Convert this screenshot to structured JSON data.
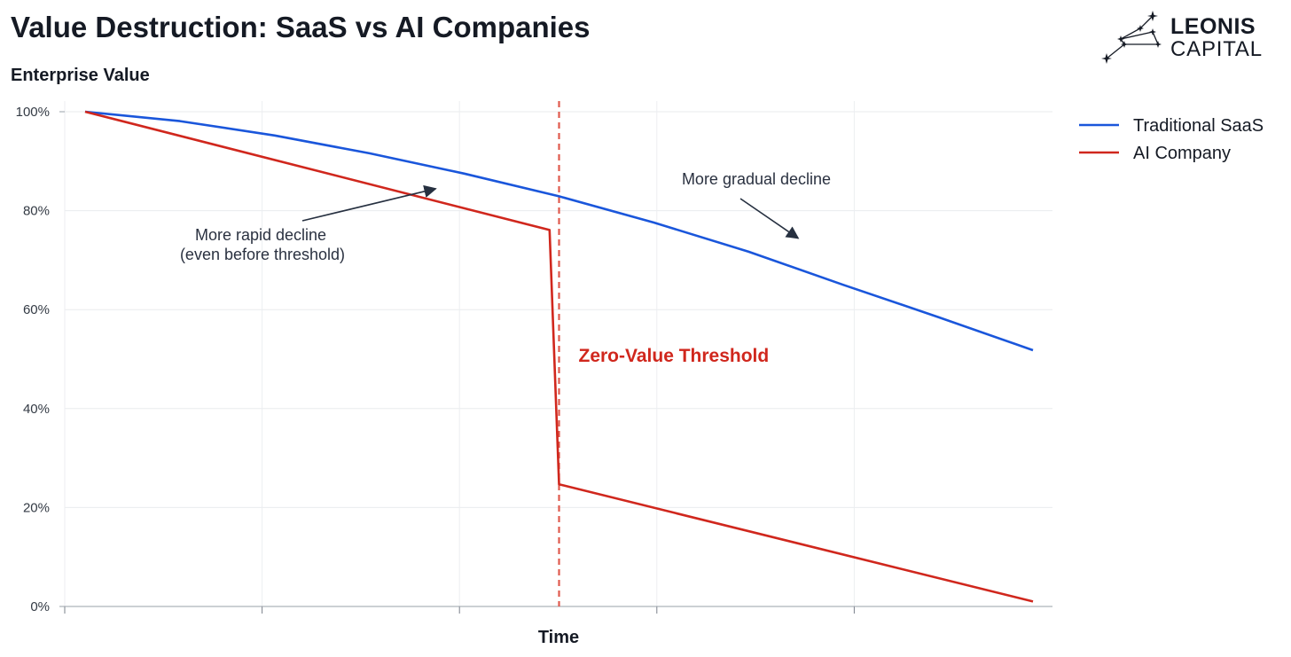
{
  "title": "Value Destruction: SaaS vs AI Companies",
  "logo": {
    "line1": "LEONIS",
    "line2": "CAPITAL"
  },
  "chart_data": {
    "type": "line",
    "ylabel": "Enterprise Value",
    "xlabel": "Time",
    "ylim": [
      0,
      100
    ],
    "xlim": [
      0,
      1
    ],
    "yticks": [
      "0%",
      "20%",
      "40%",
      "60%",
      "80%",
      "100%"
    ],
    "ytick_values": [
      0,
      20,
      40,
      60,
      80,
      100
    ],
    "xtick_values": [
      0,
      0.2,
      0.4,
      0.6,
      0.8
    ],
    "grid": true,
    "legend": "top-right",
    "series": [
      {
        "name": "Traditional SaaS",
        "color": "#1a56db",
        "x": [
          0,
          0.1,
          0.2,
          0.3,
          0.4,
          0.5,
          0.6,
          0.7,
          0.8,
          0.9,
          1.0
        ],
        "y": [
          100,
          98.1,
          95.2,
          91.6,
          87.5,
          82.9,
          77.6,
          71.7,
          65,
          58.5,
          51.8
        ]
      },
      {
        "name": "AI Company",
        "color": "#d0271d",
        "x": [
          0,
          0.49,
          0.5,
          1.0
        ],
        "y": [
          100,
          76.1,
          24.7,
          1
        ]
      }
    ],
    "threshold": {
      "x": 0.5,
      "label": "Zero-Value Threshold",
      "color": "#e05a4e"
    },
    "annotations": [
      {
        "lines": [
          "More rapid decline",
          "(even before threshold)"
        ],
        "target": [
          0.295,
          84.8
        ]
      },
      {
        "lines": [
          "More gradual decline"
        ],
        "target": [
          0.655,
          75.5
        ]
      }
    ]
  }
}
